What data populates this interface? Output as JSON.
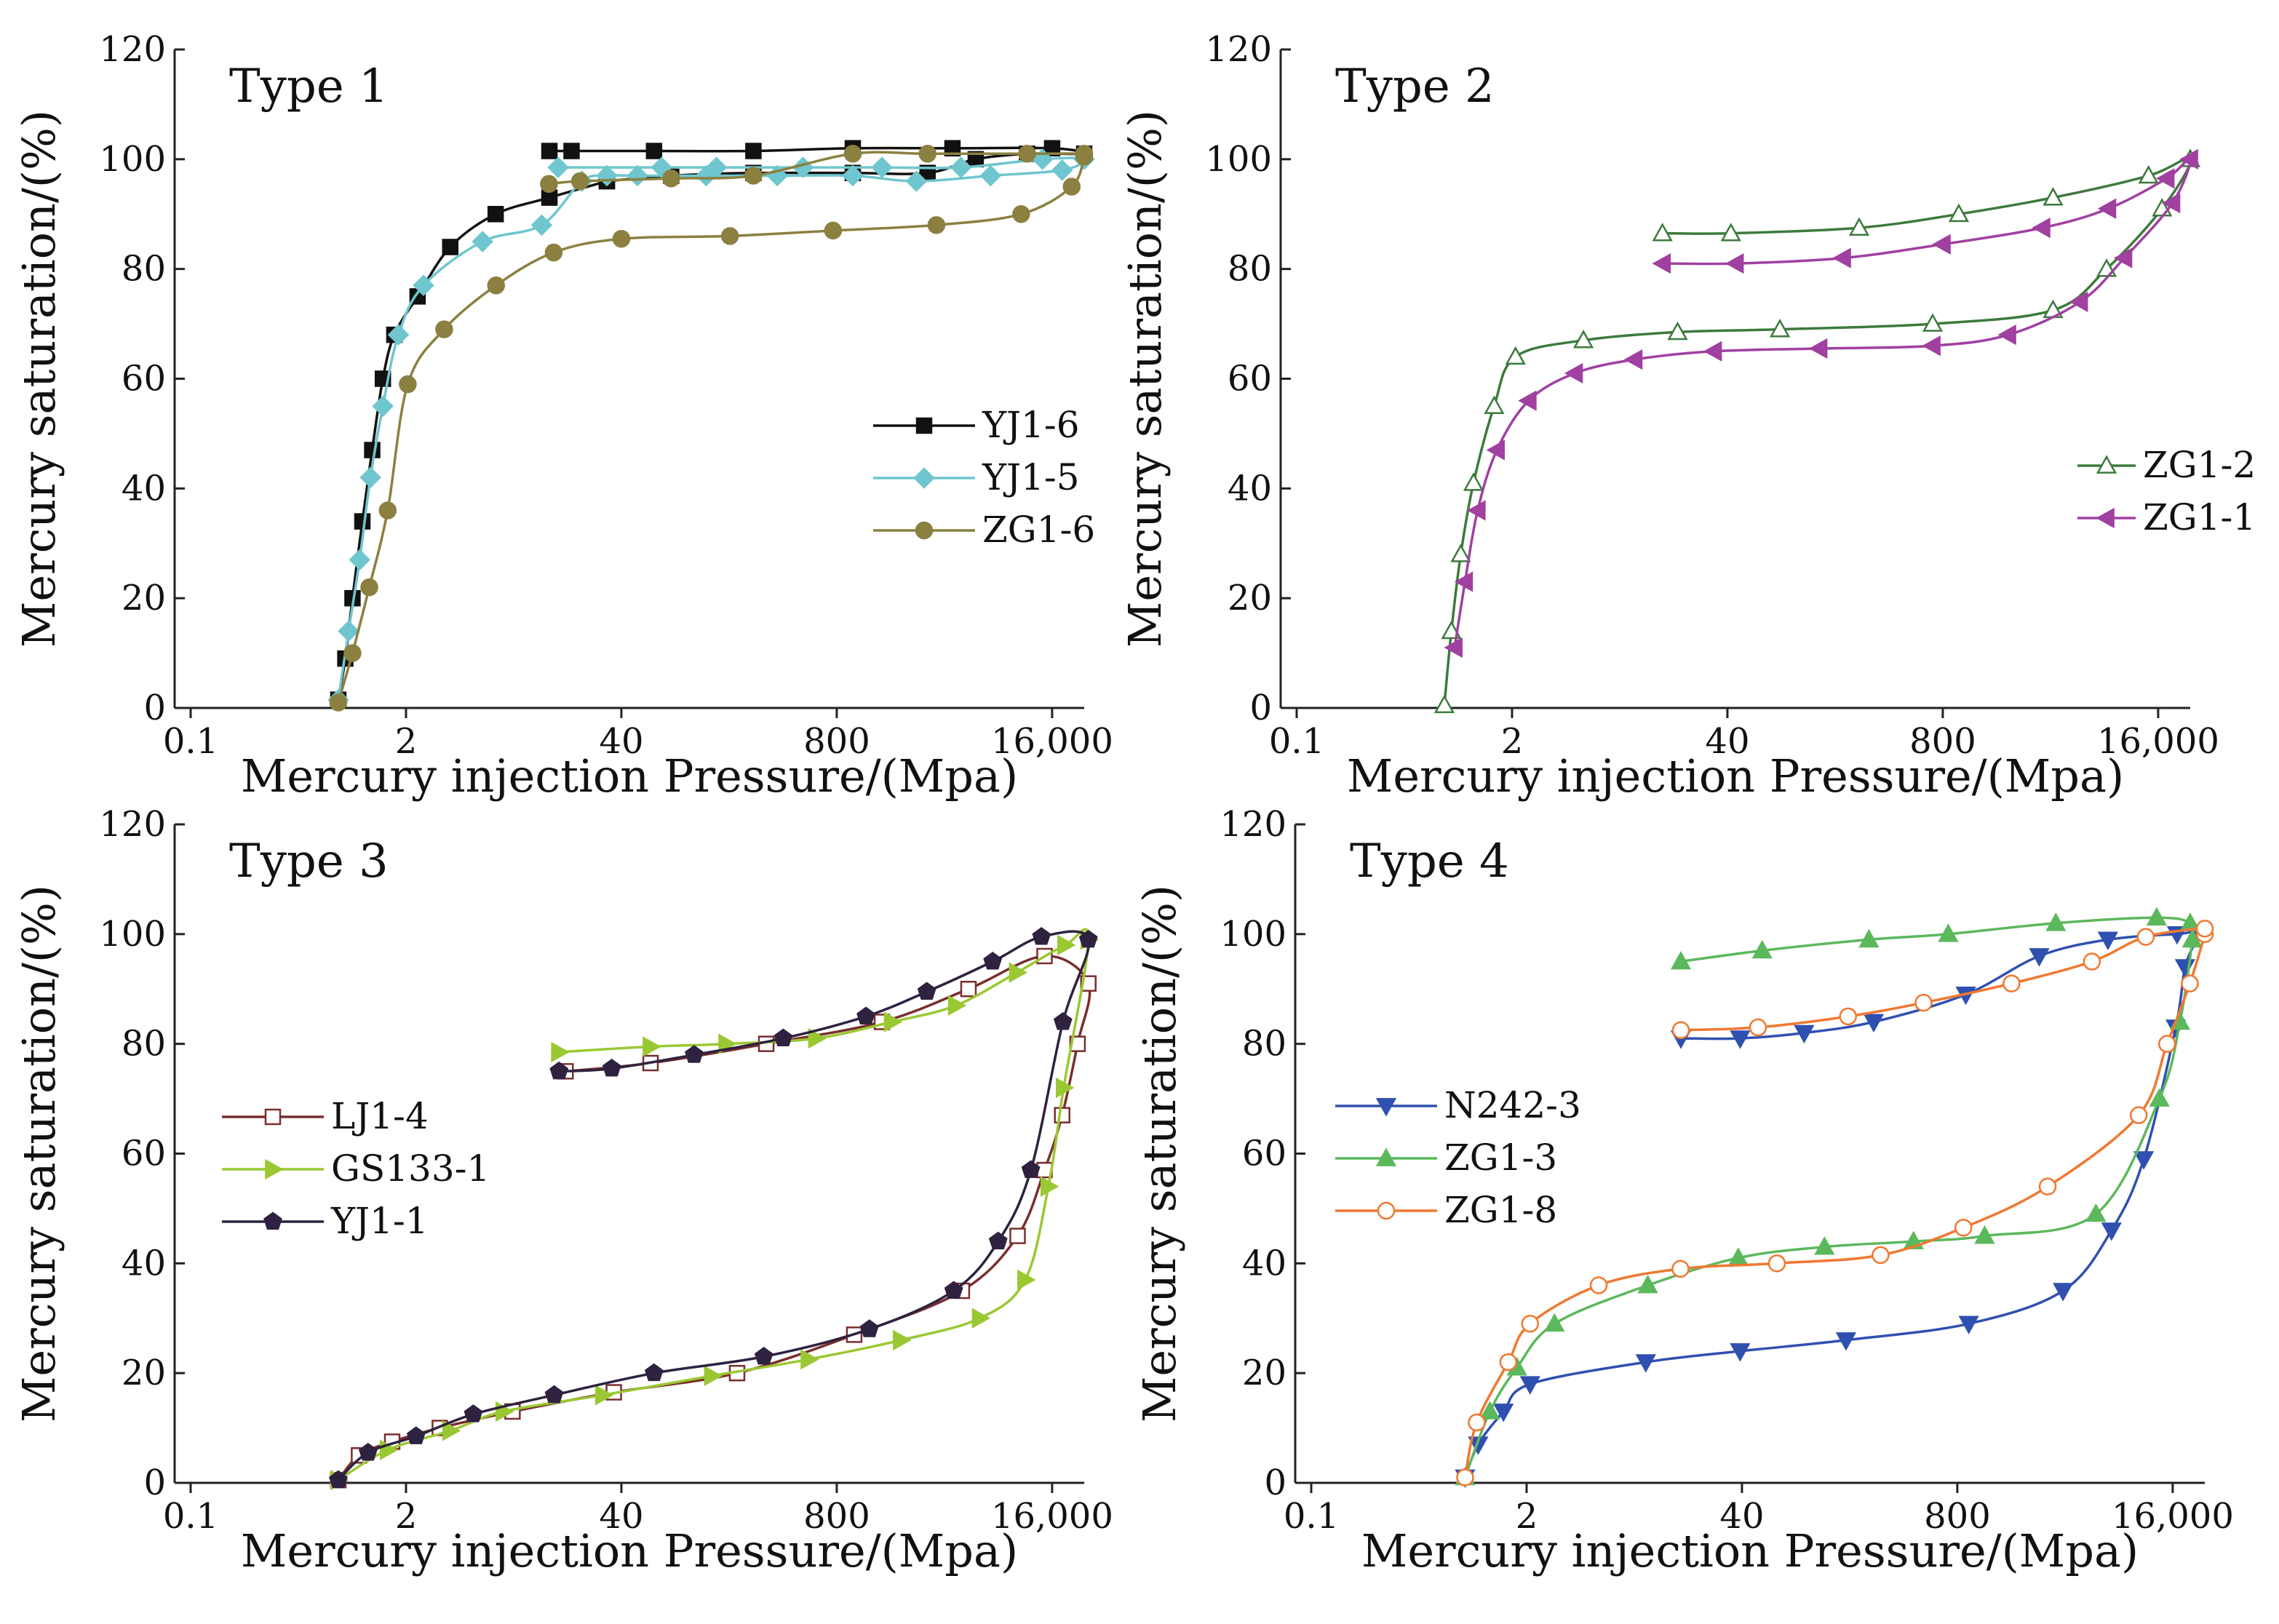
{
  "figure": {
    "xlabel": "Mercury injection Pressure/(Mpa)",
    "ylabel": "Mercury saturation/(%)"
  },
  "chart_data": [
    {
      "type": "line",
      "title": "Type 1",
      "xlabel": "Mercury injection Pressure/(Mpa)",
      "ylabel": "Mercury saturation/(%)",
      "xscale": "log",
      "xticks": [
        0.1,
        2,
        40,
        800,
        16000
      ],
      "xtick_labels": [
        "0.1",
        "2",
        "40",
        "800",
        "16,000"
      ],
      "ylim": [
        0,
        120
      ],
      "yticks": [
        0,
        20,
        40,
        60,
        80,
        100,
        120
      ],
      "legend": "right-middle",
      "series": [
        {
          "name": "YJ1-6",
          "color": "#111111",
          "marker": "square-filled",
          "x": [
            0.78,
            0.86,
            0.95,
            1.09,
            1.25,
            1.45,
            1.7,
            2.35,
            3.7,
            6.96,
            14.7,
            32.7,
            32.7,
            80,
            251,
            1000,
            2830,
            5530,
            11300,
            25000,
            16000,
            4000,
            1000,
            251,
            63,
            20,
            14.7
          ],
          "y": [
            1.5,
            9.0,
            20.0,
            34.0,
            47.0,
            60.0,
            68.0,
            75.0,
            84.0,
            90.0,
            93.0,
            96.0,
            96.0,
            97.0,
            97.5,
            97.5,
            97.5,
            100.0,
            101.0,
            101.0,
            102.0,
            102.0,
            102.0,
            101.5,
            101.5,
            101.5,
            101.5
          ]
        },
        {
          "name": "YJ1-5",
          "color": "#6FC6CE",
          "marker": "diamond-filled",
          "x": [
            0.78,
            0.9,
            1.05,
            1.22,
            1.45,
            1.8,
            2.55,
            5.8,
            13.2,
            23.1,
            32.7,
            50,
            130,
            350,
            1000,
            2420,
            6800,
            18400,
            25000,
            14000,
            4500,
            1500,
            500,
            150,
            70,
            16.6
          ],
          "y": [
            1.5,
            14.0,
            27.0,
            42.0,
            55.0,
            68.0,
            77.0,
            85.0,
            88.0,
            96.0,
            97.0,
            97.0,
            97.0,
            97.0,
            97.0,
            96.0,
            97.0,
            98.0,
            100.0,
            100.0,
            98.5,
            98.5,
            98.5,
            98.5,
            98.5,
            98.5
          ]
        },
        {
          "name": "ZG1-6",
          "color": "#8B8040",
          "marker": "circle-filled",
          "x": [
            0.78,
            0.95,
            1.2,
            1.55,
            2.05,
            3.4,
            7.0,
            15.6,
            40,
            181,
            760,
            3200,
            10400,
            21000,
            25000,
            25000,
            11300,
            2830,
            1000,
            251,
            80,
            22.5,
            14.6
          ],
          "y": [
            1.0,
            10.0,
            22.0,
            36.0,
            59.0,
            69.0,
            77.0,
            83.0,
            85.5,
            86.0,
            87.0,
            88.0,
            90.0,
            95.0,
            100.5,
            101.0,
            101.0,
            101.0,
            101.0,
            97.0,
            96.5,
            96.0,
            95.5
          ]
        }
      ]
    },
    {
      "type": "line",
      "title": "Type 2",
      "xlabel": "Mercury injection Pressure/(Mpa)",
      "ylabel": "Mercury saturation/(%)",
      "xscale": "log",
      "xticks": [
        0.1,
        2,
        40,
        800,
        16000
      ],
      "xtick_labels": [
        "0.1",
        "2",
        "40",
        "800",
        "16,000"
      ],
      "ylim": [
        0,
        120
      ],
      "yticks": [
        0,
        20,
        40,
        60,
        80,
        100,
        120
      ],
      "legend": "right-middle",
      "series": [
        {
          "name": "ZG1-2",
          "color": "#3D7A3D",
          "marker": "triangle-up-open",
          "x": [
            0.78,
            0.86,
            0.98,
            1.17,
            1.56,
            2.1,
            5.4,
            20.0,
            83.0,
            695,
            3710,
            7810,
            16900,
            25000,
            14000,
            3710,
            1000,
            250,
            42,
            16.2
          ],
          "y": [
            0.5,
            14.0,
            28.0,
            41.0,
            55.0,
            64.0,
            67.0,
            68.5,
            69.0,
            70.0,
            72.5,
            80.0,
            91.0,
            100.0,
            97.0,
            93.0,
            90.0,
            87.5,
            86.5,
            86.5
          ]
        },
        {
          "name": "ZG1-1",
          "color": "#A040A0",
          "marker": "triangle-left-filled",
          "x": [
            0.9,
            1.04,
            1.24,
            1.62,
            2.52,
            4.8,
            11.0,
            33.2,
            144,
            695,
            1990,
            5400,
            10000,
            19500,
            25000,
            18000,
            8000,
            3200,
            800,
            200,
            45,
            16.3
          ],
          "y": [
            11.0,
            23.0,
            36.0,
            47.0,
            56.0,
            61.0,
            63.5,
            65.0,
            65.5,
            66.0,
            68.0,
            74.0,
            82.0,
            92.0,
            100.0,
            96.5,
            91.0,
            87.5,
            84.5,
            82.0,
            81.0,
            81.0
          ]
        }
      ]
    },
    {
      "type": "line",
      "title": "Type 3",
      "xlabel": "Mercury injection Pressure/(Mpa)",
      "ylabel": "Mercury saturation/(%)",
      "xscale": "log",
      "xticks": [
        0.1,
        2,
        40,
        800,
        16000
      ],
      "xtick_labels": [
        "0.1",
        "2",
        "40",
        "800",
        "16,000"
      ],
      "ylim": [
        0,
        120
      ],
      "yticks": [
        0,
        20,
        40,
        60,
        80,
        100,
        120
      ],
      "legend": "left-middle",
      "series": [
        {
          "name": "LJ1-4",
          "color": "#7A2E2E",
          "marker": "square-open",
          "x": [
            0.78,
            1.04,
            1.65,
            3.2,
            8.8,
            36.0,
            200,
            1020,
            4560,
            9900,
            14400,
            18400,
            22800,
            26500,
            14400,
            5000,
            1500,
            300,
            60,
            18.4
          ],
          "y": [
            0.5,
            5.0,
            7.5,
            10.0,
            13.0,
            16.5,
            20.0,
            27.0,
            35.0,
            45.0,
            57.0,
            67.0,
            80.0,
            91.0,
            96.0,
            90.0,
            84.0,
            80.0,
            76.5,
            75.0
          ]
        },
        {
          "name": "GS133-1",
          "color": "#9AC832",
          "marker": "triangle-right-filled",
          "x": [
            0.78,
            1.55,
            3.7,
            7.75,
            31.0,
            141,
            540,
            1950,
            5850,
            11000,
            15200,
            18800,
            26500,
            19200,
            9800,
            4200,
            1720,
            600,
            172,
            60,
            16.8
          ],
          "y": [
            0.5,
            6.0,
            9.5,
            13.0,
            16.0,
            19.5,
            22.5,
            26.0,
            30.0,
            37.0,
            54.0,
            72.0,
            99.0,
            98.0,
            93.0,
            87.0,
            84.0,
            81.0,
            80.0,
            79.5,
            78.5
          ]
        },
        {
          "name": "YJ1-1",
          "color": "#2E2240",
          "marker": "pentagon-filled",
          "x": [
            0.78,
            1.18,
            2.3,
            5.1,
            15.7,
            63.0,
            290,
            1260,
            4070,
            7560,
            11900,
            18600,
            26500,
            13800,
            7000,
            2800,
            1200,
            380,
            110,
            35,
            16.8
          ],
          "y": [
            0.5,
            5.5,
            8.5,
            12.5,
            16.0,
            20.0,
            23.0,
            28.0,
            35.0,
            44.0,
            57.0,
            84.0,
            99.0,
            99.5,
            95.0,
            89.5,
            85.0,
            81.0,
            78.0,
            75.5,
            75.0
          ]
        }
      ]
    },
    {
      "type": "line",
      "title": "Type 4",
      "xlabel": "Mercury injection Pressure/(Mpa)",
      "ylabel": "Mercury saturation/(%)",
      "xscale": "log",
      "xticks": [
        0.1,
        2,
        40,
        800,
        16000
      ],
      "xtick_labels": [
        "0.1",
        "2",
        "40",
        "800",
        "16,000"
      ],
      "ylim": [
        0,
        120
      ],
      "yticks": [
        0,
        20,
        40,
        60,
        80,
        100,
        120
      ],
      "legend": "left-middle",
      "series": [
        {
          "name": "N242-3",
          "color": "#3050B0",
          "marker": "triangle-down-filled",
          "x": [
            0.85,
            1.02,
            1.45,
            2.1,
            10.5,
            39.0,
            170,
            938,
            3480,
            6830,
            10700,
            16700,
            19000,
            22500,
            17000,
            6500,
            2500,
            900,
            250,
            95,
            39,
            17.1
          ],
          "y": [
            1.0,
            7.0,
            13.0,
            18.0,
            22.0,
            24.0,
            26.0,
            29.0,
            35.0,
            46.0,
            59.0,
            83.0,
            94.0,
            100.0,
            100.0,
            99.0,
            96.0,
            89.0,
            84.0,
            82.0,
            81.0,
            81.0
          ]
        },
        {
          "name": "ZG1-3",
          "color": "#5CB85C",
          "marker": "triangle-up-filled",
          "x": [
            0.85,
            1.2,
            1.75,
            2.95,
            10.8,
            38.0,
            126,
            435,
            1170,
            5500,
            13300,
            17700,
            21000,
            20400,
            12800,
            3150,
            705,
            234,
            53,
            17.1
          ],
          "y": [
            1.0,
            13.0,
            21.0,
            29.0,
            36.0,
            41.0,
            43.0,
            44.0,
            45.0,
            49.0,
            70.0,
            84.0,
            99.0,
            102.0,
            103.0,
            102.0,
            100.0,
            99.0,
            97.0,
            95.0
          ]
        },
        {
          "name": "ZG1-8",
          "color": "#F07830",
          "marker": "circle-open",
          "x": [
            0.85,
            1.0,
            1.55,
            2.1,
            5.45,
            17.0,
            65.0,
            275,
            870,
            2810,
            9970,
            14800,
            20300,
            25000,
            25000,
            11000,
            5200,
            1700,
            500,
            175,
            50,
            17.1
          ],
          "y": [
            1.0,
            11.0,
            22.0,
            29.0,
            36.0,
            39.0,
            40.0,
            41.5,
            46.5,
            54.0,
            67.0,
            80.0,
            91.0,
            100.0,
            101.0,
            99.5,
            95.0,
            91.0,
            87.5,
            85.0,
            83.0,
            82.5
          ]
        }
      ]
    }
  ]
}
